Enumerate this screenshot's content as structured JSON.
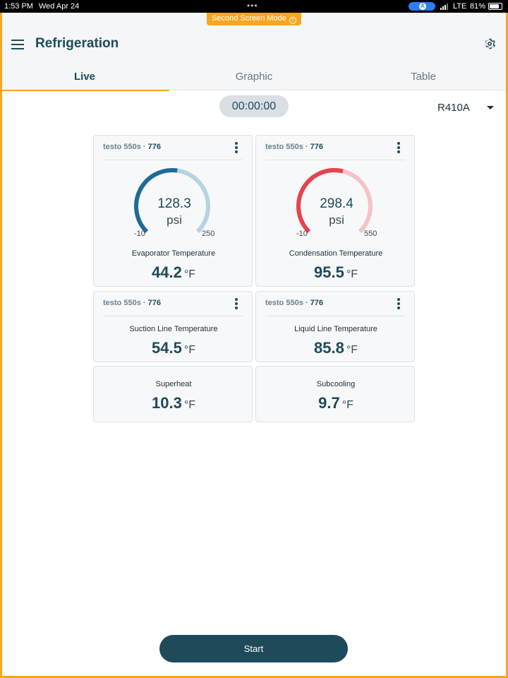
{
  "status_bar": {
    "time": "1:53 PM",
    "date": "Wed Apr 24",
    "network": "LTE",
    "battery": "81%",
    "battery_level": 0.81
  },
  "banner": {
    "label": "Second Screen Mode",
    "icon": "info-icon"
  },
  "header": {
    "title": "Refrigeration",
    "menu_icon": "menu-icon",
    "settings_icon": "gear-icon"
  },
  "tabs": [
    {
      "label": "Live",
      "active": true
    },
    {
      "label": "Graphic",
      "active": false
    },
    {
      "label": "Table",
      "active": false
    }
  ],
  "timer": "00:00:00",
  "refrigerant": {
    "selected": "R410A"
  },
  "cards": [
    {
      "device": "testo 550s",
      "separator": " · ",
      "serial": "776",
      "gauge": {
        "value": "128.3",
        "unit": "psi",
        "min": "-10",
        "max": "250",
        "fraction": 0.53,
        "color": "#1e6a9a",
        "track": "#b6d2e3"
      },
      "label": "Evaporator Temperature",
      "value": "44.2",
      "unit": "°F"
    },
    {
      "device": "testo 550s",
      "separator": " · ",
      "serial": "776",
      "gauge": {
        "value": "298.4",
        "unit": "psi",
        "min": "-10",
        "max": "550",
        "fraction": 0.55,
        "color": "#e8424c",
        "track": "#f5c2c5"
      },
      "label": "Condensation Temperature",
      "value": "95.5",
      "unit": "°F"
    },
    {
      "device": "testo 550s",
      "separator": " · ",
      "serial": "776",
      "label": "Suction Line Temperature",
      "value": "54.5",
      "unit": "°F"
    },
    {
      "device": "testo 550s",
      "separator": " · ",
      "serial": "776",
      "label": "Liquid Line Temperature",
      "value": "85.8",
      "unit": "°F"
    },
    {
      "label": "Superheat",
      "value": "10.3",
      "unit": "°F"
    },
    {
      "label": "Subcooling",
      "value": "9.7",
      "unit": "°F"
    }
  ],
  "start_button": {
    "label": "Start"
  }
}
